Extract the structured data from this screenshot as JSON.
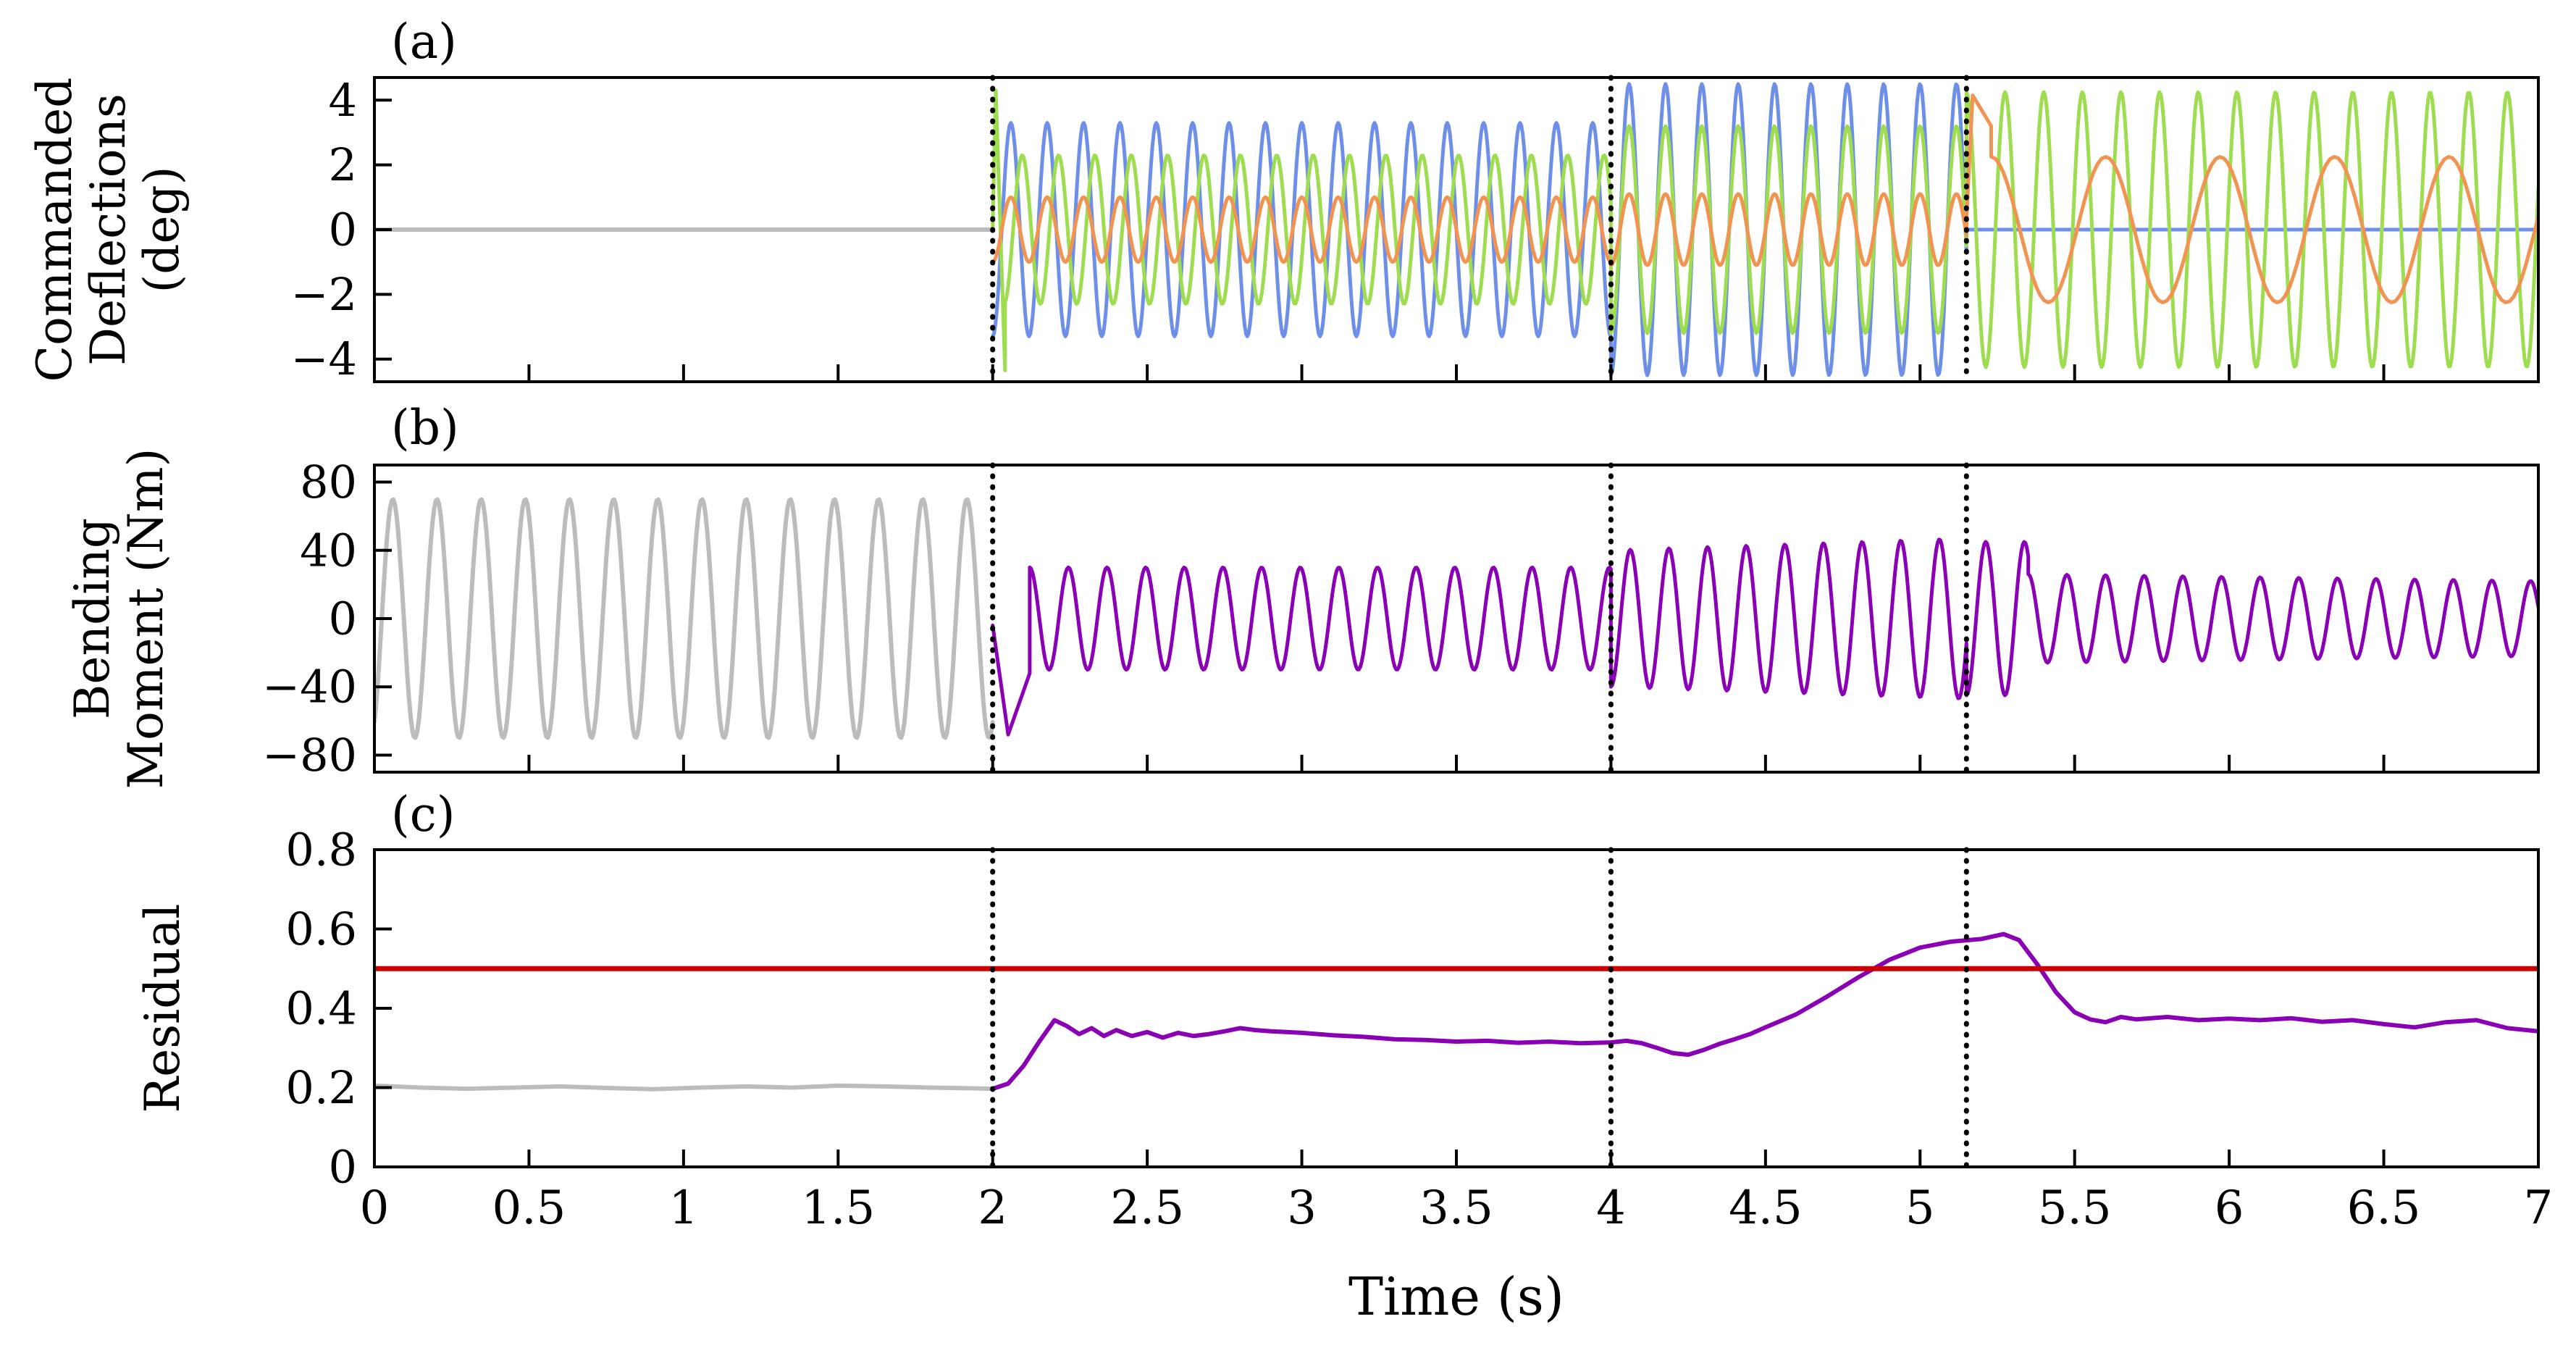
{
  "chart_data": {
    "type": "line",
    "xlabel": "Time (s)",
    "xlim": [
      0,
      7
    ],
    "xticks": [
      0,
      0.5,
      1,
      1.5,
      2,
      2.5,
      3,
      3.5,
      4,
      4.5,
      5,
      5.5,
      6,
      6.5,
      7
    ],
    "xtick_labels": [
      "0",
      "0.5",
      "1",
      "1.5",
      "2",
      "2.5",
      "3",
      "3.5",
      "4",
      "4.5",
      "5",
      "5.5",
      "6",
      "6.5",
      "7"
    ],
    "event_lines_x": [
      2,
      4,
      5.15
    ],
    "grid": false,
    "legend": "none",
    "colors": {
      "gray": "#bcbcbc",
      "blue": "#6e8fe8",
      "green": "#9edc50",
      "orange": "#f19351",
      "purple": "#8a00b5",
      "red": "#cc0000",
      "event_line": "#000000"
    },
    "panels": [
      {
        "id": "a",
        "label": "(a)",
        "ylabel_lines": [
          "Commanded",
          "Deflections",
          "(deg)"
        ],
        "ylim": [
          -4.7,
          4.7
        ],
        "yticks": [
          -4,
          -2,
          0,
          2,
          4
        ],
        "ytick_labels": [
          "−4",
          "−2",
          "0",
          "2",
          "4"
        ],
        "series": [
          {
            "name": "pre-flat",
            "color": "#bcbcbc",
            "width": 6,
            "segments": [
              {
                "kind": "const",
                "t0": 0,
                "t1": 2,
                "value": 0
              }
            ]
          },
          {
            "name": "cmd-blue",
            "color": "#6e8fe8",
            "width": 5,
            "segments": [
              {
                "kind": "sine",
                "t0": 2,
                "t1": 4,
                "amp": 3.3,
                "freq": 8.5,
                "phase_deg": -90
              },
              {
                "kind": "sine",
                "t0": 4,
                "t1": 5.15,
                "amp": 4.5,
                "freq": 8.5,
                "phase_deg": -90
              },
              {
                "kind": "const",
                "t0": 5.15,
                "t1": 7,
                "value": 0
              }
            ]
          },
          {
            "name": "cmd-green",
            "color": "#9edc50",
            "width": 5,
            "segments": [
              {
                "kind": "points",
                "points": [
                  [
                    2.0,
                    0
                  ],
                  [
                    2.01,
                    4.3
                  ],
                  [
                    2.04,
                    -4.35
                  ]
                ]
              },
              {
                "kind": "sine",
                "t0": 2.04,
                "t1": 4,
                "amp": 2.3,
                "freq": 8.5,
                "phase_deg": -80
              },
              {
                "kind": "sine",
                "t0": 4,
                "t1": 5.15,
                "amp": 3.2,
                "freq": 8.5,
                "phase_deg": -90
              },
              {
                "kind": "sine",
                "t0": 5.15,
                "t1": 7,
                "amp": 4.25,
                "freq": 8,
                "phase_deg": 90
              }
            ]
          },
          {
            "name": "cmd-orange",
            "color": "#f19351",
            "width": 5,
            "segments": [
              {
                "kind": "sine",
                "t0": 2,
                "t1": 4,
                "amp": 1.0,
                "freq": 8.5,
                "phase_deg": -90
              },
              {
                "kind": "sine",
                "t0": 4,
                "t1": 5.15,
                "amp": 1.1,
                "freq": 8.5,
                "phase_deg": -90
              },
              {
                "kind": "points",
                "points": [
                  [
                    5.15,
                    0.3
                  ],
                  [
                    5.17,
                    4.15
                  ],
                  [
                    5.23,
                    3.2
                  ]
                ]
              },
              {
                "kind": "sine",
                "t0": 5.23,
                "t1": 7,
                "amp": 2.25,
                "freq": 2.7,
                "phase_deg": 90
              }
            ]
          }
        ]
      },
      {
        "id": "b",
        "label": "(b)",
        "ylabel_lines": [
          "Bending",
          "Moment (Nm)"
        ],
        "ylim": [
          -90,
          90
        ],
        "yticks": [
          -80,
          -40,
          0,
          40,
          80
        ],
        "ytick_labels": [
          "−80",
          "−40",
          "0",
          "40",
          "80"
        ],
        "series": [
          {
            "name": "bending-gray",
            "color": "#bcbcbc",
            "width": 6,
            "segments": [
              {
                "kind": "sine",
                "t0": 0,
                "t1": 2,
                "amp": 70,
                "freq": 7,
                "phase_deg": -60
              }
            ]
          },
          {
            "name": "bending-purple",
            "color": "#8a00b5",
            "width": 5,
            "segments": [
              {
                "kind": "points",
                "points": [
                  [
                    2.0,
                    -4
                  ],
                  [
                    2.05,
                    -68
                  ],
                  [
                    2.12,
                    -32
                  ]
                ]
              },
              {
                "kind": "sine",
                "t0": 2.12,
                "t1": 4,
                "amp": 30,
                "freq": 8,
                "phase_deg": 90
              },
              {
                "kind": "sine",
                "t0": 4,
                "t1": 5.15,
                "amp": 40,
                "amp2": 47,
                "freq": 8,
                "phase_deg": -90
              },
              {
                "kind": "sine",
                "t0": 5.15,
                "t1": 5.35,
                "amp": 45,
                "freq": 8,
                "phase_deg": -90
              },
              {
                "kind": "sine",
                "t0": 5.35,
                "t1": 7,
                "amp": 26,
                "amp2": 22,
                "freq": 8,
                "phase_deg": 90
              }
            ]
          }
        ]
      },
      {
        "id": "c",
        "label": "(c)",
        "ylabel_lines": [
          "Residual"
        ],
        "ylim": [
          0,
          0.8
        ],
        "yticks": [
          0,
          0.2,
          0.4,
          0.6,
          0.8
        ],
        "ytick_labels": [
          "0",
          "0.2",
          "0.4",
          "0.6",
          "0.8"
        ],
        "threshold": 0.5,
        "series": [
          {
            "name": "residual-gray",
            "color": "#bcbcbc",
            "width": 6,
            "segments": [
              {
                "kind": "points",
                "points": [
                  [
                    0,
                    0.205
                  ],
                  [
                    0.15,
                    0.2
                  ],
                  [
                    0.3,
                    0.197
                  ],
                  [
                    0.45,
                    0.2
                  ],
                  [
                    0.6,
                    0.203
                  ],
                  [
                    0.75,
                    0.199
                  ],
                  [
                    0.9,
                    0.196
                  ],
                  [
                    1.05,
                    0.2
                  ],
                  [
                    1.2,
                    0.203
                  ],
                  [
                    1.35,
                    0.2
                  ],
                  [
                    1.5,
                    0.205
                  ],
                  [
                    1.65,
                    0.203
                  ],
                  [
                    1.8,
                    0.2
                  ],
                  [
                    1.95,
                    0.198
                  ],
                  [
                    2,
                    0.197
                  ]
                ]
              }
            ]
          },
          {
            "name": "residual-purple",
            "color": "#8a00b5",
            "width": 6,
            "segments": [
              {
                "kind": "points",
                "points": [
                  [
                    2,
                    0.197
                  ],
                  [
                    2.05,
                    0.21
                  ],
                  [
                    2.1,
                    0.255
                  ],
                  [
                    2.15,
                    0.315
                  ],
                  [
                    2.2,
                    0.37
                  ],
                  [
                    2.24,
                    0.355
                  ],
                  [
                    2.28,
                    0.335
                  ],
                  [
                    2.32,
                    0.35
                  ],
                  [
                    2.36,
                    0.33
                  ],
                  [
                    2.4,
                    0.345
                  ],
                  [
                    2.45,
                    0.33
                  ],
                  [
                    2.5,
                    0.34
                  ],
                  [
                    2.55,
                    0.326
                  ],
                  [
                    2.6,
                    0.338
                  ],
                  [
                    2.65,
                    0.33
                  ],
                  [
                    2.7,
                    0.335
                  ],
                  [
                    2.75,
                    0.342
                  ],
                  [
                    2.8,
                    0.35
                  ],
                  [
                    2.85,
                    0.345
                  ],
                  [
                    2.9,
                    0.342
                  ],
                  [
                    2.95,
                    0.34
                  ],
                  [
                    3.0,
                    0.338
                  ],
                  [
                    3.1,
                    0.332
                  ],
                  [
                    3.2,
                    0.328
                  ],
                  [
                    3.3,
                    0.322
                  ],
                  [
                    3.4,
                    0.32
                  ],
                  [
                    3.5,
                    0.316
                  ],
                  [
                    3.6,
                    0.318
                  ],
                  [
                    3.7,
                    0.313
                  ],
                  [
                    3.8,
                    0.316
                  ],
                  [
                    3.9,
                    0.312
                  ],
                  [
                    4.0,
                    0.314
                  ],
                  [
                    4.05,
                    0.318
                  ],
                  [
                    4.1,
                    0.312
                  ],
                  [
                    4.15,
                    0.3
                  ],
                  [
                    4.2,
                    0.287
                  ],
                  [
                    4.25,
                    0.283
                  ],
                  [
                    4.3,
                    0.295
                  ],
                  [
                    4.35,
                    0.31
                  ],
                  [
                    4.4,
                    0.322
                  ],
                  [
                    4.45,
                    0.335
                  ],
                  [
                    4.5,
                    0.352
                  ],
                  [
                    4.6,
                    0.385
                  ],
                  [
                    4.7,
                    0.43
                  ],
                  [
                    4.8,
                    0.478
                  ],
                  [
                    4.9,
                    0.522
                  ],
                  [
                    5.0,
                    0.553
                  ],
                  [
                    5.1,
                    0.568
                  ],
                  [
                    5.2,
                    0.575
                  ],
                  [
                    5.27,
                    0.587
                  ],
                  [
                    5.32,
                    0.572
                  ],
                  [
                    5.38,
                    0.51
                  ],
                  [
                    5.44,
                    0.44
                  ],
                  [
                    5.5,
                    0.39
                  ],
                  [
                    5.55,
                    0.372
                  ],
                  [
                    5.6,
                    0.365
                  ],
                  [
                    5.65,
                    0.378
                  ],
                  [
                    5.7,
                    0.372
                  ],
                  [
                    5.8,
                    0.378
                  ],
                  [
                    5.9,
                    0.37
                  ],
                  [
                    6.0,
                    0.374
                  ],
                  [
                    6.1,
                    0.37
                  ],
                  [
                    6.2,
                    0.375
                  ],
                  [
                    6.3,
                    0.366
                  ],
                  [
                    6.4,
                    0.37
                  ],
                  [
                    6.5,
                    0.36
                  ],
                  [
                    6.6,
                    0.352
                  ],
                  [
                    6.7,
                    0.365
                  ],
                  [
                    6.8,
                    0.37
                  ],
                  [
                    6.9,
                    0.35
                  ],
                  [
                    7.0,
                    0.342
                  ]
                ]
              }
            ]
          },
          {
            "name": "threshold-red",
            "color": "#cc0000",
            "width": 7,
            "segments": [
              {
                "kind": "const",
                "t0": 0,
                "t1": 7,
                "value": 0.5
              }
            ]
          }
        ]
      }
    ]
  }
}
